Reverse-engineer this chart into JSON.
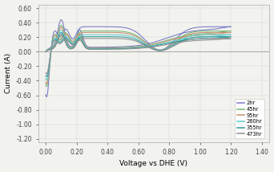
{
  "xlabel": "Voltage vs DHE (V)",
  "ylabel": "Current (A)",
  "xlim": [
    -0.05,
    1.45
  ],
  "ylim": [
    -1.25,
    0.65
  ],
  "xticks": [
    0.0,
    0.2,
    0.4,
    0.6,
    0.8,
    1.0,
    1.2,
    1.4
  ],
  "yticks": [
    -1.2,
    -1.0,
    -0.8,
    -0.6,
    -0.4,
    -0.2,
    0.0,
    0.2,
    0.4,
    0.6
  ],
  "series": [
    {
      "label": "2hr",
      "color": "#7878c8"
    },
    {
      "label": "45hr",
      "color": "#78b878"
    },
    {
      "label": "95hr",
      "color": "#c89070"
    },
    {
      "label": "260hr",
      "color": "#60cece"
    },
    {
      "label": "355hr",
      "color": "#309898"
    },
    {
      "label": "473hr",
      "color": "#909090"
    }
  ],
  "cv_params": [
    {
      "scale": 1.0,
      "trough": 1.05
    },
    {
      "scale": 0.83,
      "trough": 0.83
    },
    {
      "scale": 0.77,
      "trough": 0.77
    },
    {
      "scale": 0.68,
      "trough": 0.68
    },
    {
      "scale": 0.6,
      "trough": 0.6
    },
    {
      "scale": 0.53,
      "trough": 0.53
    }
  ],
  "background_color": "#f2f2ee",
  "grid_color": "#cccccc"
}
